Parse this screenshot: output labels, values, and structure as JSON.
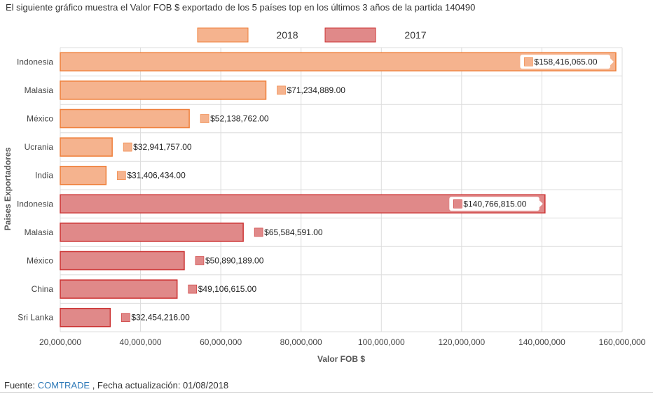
{
  "page": {
    "title": "El siguiente gráfico muestra el Valor FOB $ exportado de los 5 países top en los últimos 3 años de la partida 140490",
    "footer": {
      "prefix": "Fuente: ",
      "link_text": "COMTRADE",
      "suffix": " , Fecha actualización: 01/08/2018"
    }
  },
  "chart_data": {
    "type": "bar",
    "orientation": "horizontal",
    "title": "",
    "xlabel": "Valor FOB $",
    "ylabel": "Paises Exportadores",
    "xlim": [
      20000000,
      160000000
    ],
    "x_ticks": [
      20000000,
      40000000,
      60000000,
      80000000,
      100000000,
      120000000,
      140000000,
      160000000
    ],
    "x_tick_labels": [
      "20,000,000",
      "40,000,000",
      "60,000,000",
      "80,000,000",
      "100,000,000",
      "120,000,000",
      "140,000,000",
      "160,000,000"
    ],
    "grid": true,
    "legend_position": "top-center",
    "series": [
      {
        "name": "2018",
        "fill": "#f5b38e",
        "stroke": "#ef7f3a",
        "categories": [
          "Indonesia",
          "Malasia",
          "México",
          "Ucrania",
          "India"
        ],
        "values": [
          158416065,
          71234889,
          52138762,
          32941757,
          31406434
        ],
        "labels": [
          "$158,416,065.00",
          "$71,234,889.00",
          "$52,138,762.00",
          "$32,941,757.00",
          "$31,406,434.00"
        ]
      },
      {
        "name": "2017",
        "fill": "#e08989",
        "stroke": "#cc3333",
        "categories": [
          "Indonesia",
          "Malasia",
          "México",
          "China",
          "Sri Lanka"
        ],
        "values": [
          140766815,
          65584591,
          50890189,
          49106615,
          32454216
        ],
        "labels": [
          "$140,766,815.00",
          "$65,584,591.00",
          "$50,890,189.00",
          "$49,106,615.00",
          "$32,454,216.00"
        ]
      }
    ]
  }
}
